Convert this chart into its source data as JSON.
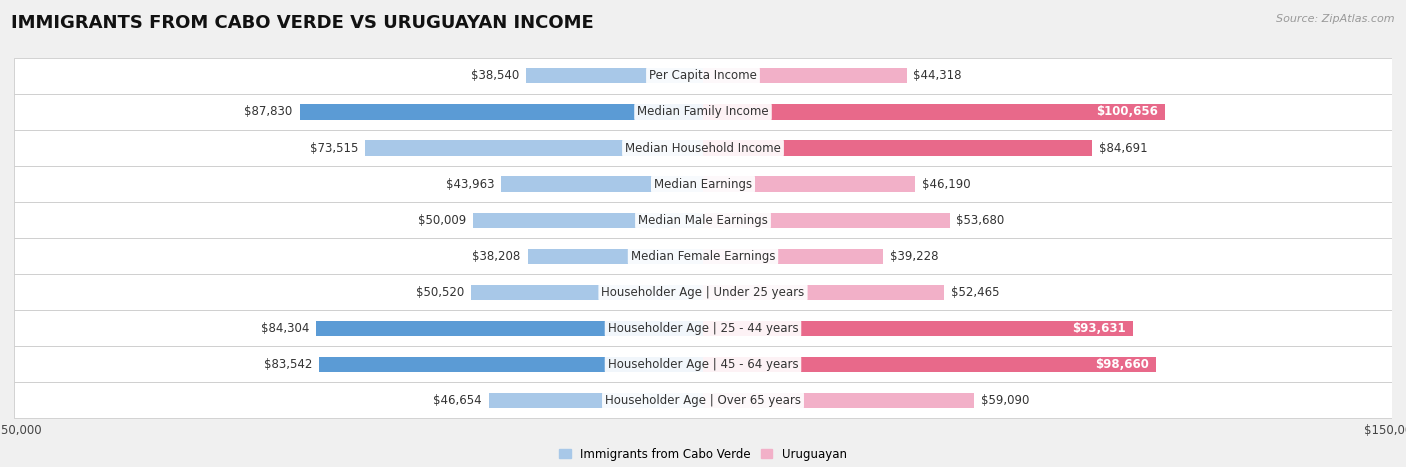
{
  "title": "IMMIGRANTS FROM CABO VERDE VS URUGUAYAN INCOME",
  "source": "Source: ZipAtlas.com",
  "categories": [
    "Per Capita Income",
    "Median Family Income",
    "Median Household Income",
    "Median Earnings",
    "Median Male Earnings",
    "Median Female Earnings",
    "Householder Age | Under 25 years",
    "Householder Age | 25 - 44 years",
    "Householder Age | 45 - 64 years",
    "Householder Age | Over 65 years"
  ],
  "cabo_verde_values": [
    38540,
    87830,
    73515,
    43963,
    50009,
    38208,
    50520,
    84304,
    83542,
    46654
  ],
  "uruguayan_values": [
    44318,
    100656,
    84691,
    46190,
    53680,
    39228,
    52465,
    93631,
    98660,
    59090
  ],
  "cabo_verde_labels": [
    "$38,540",
    "$87,830",
    "$73,515",
    "$43,963",
    "$50,009",
    "$38,208",
    "$50,520",
    "$84,304",
    "$83,542",
    "$46,654"
  ],
  "uruguayan_labels": [
    "$44,318",
    "$100,656",
    "$84,691",
    "$46,190",
    "$53,680",
    "$39,228",
    "$52,465",
    "$93,631",
    "$98,660",
    "$59,090"
  ],
  "cabo_verde_color_light": "#a8c8e8",
  "cabo_verde_color_dark": "#5b9bd5",
  "uruguayan_color_light": "#f2b0c8",
  "uruguayan_color_dark": "#e8698a",
  "cabo_verde_dark_rows": [
    1,
    7,
    8
  ],
  "uruguayan_dark_rows": [
    1,
    2,
    7,
    8
  ],
  "uruguayan_label_white_rows": [
    1,
    7,
    8
  ],
  "axis_limit": 150000,
  "legend_cabo_verde": "Immigrants from Cabo Verde",
  "legend_uruguayan": "Uruguayan",
  "background_color": "#f0f0f0",
  "row_bg_color": "#ffffff",
  "title_fontsize": 13,
  "label_fontsize": 8.5,
  "category_fontsize": 8.5
}
